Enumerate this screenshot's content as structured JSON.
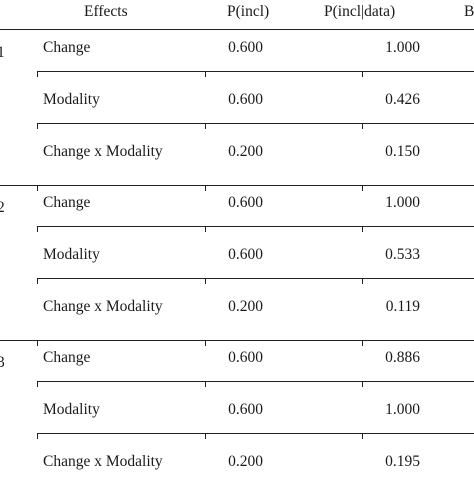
{
  "header": {
    "effects": "Effects",
    "p_incl": "P(incl)",
    "p_incl_data": "P(incl|data)",
    "bf_partial": "B"
  },
  "models": [
    {
      "label": "1",
      "rows": [
        {
          "effect": "Change",
          "p_incl": "0.600",
          "p_incl_data": "1.000"
        },
        {
          "effect": "Modality",
          "p_incl": "0.600",
          "p_incl_data": "0.426"
        },
        {
          "effect": "Change x Modality",
          "p_incl": "0.200",
          "p_incl_data": "0.150"
        }
      ]
    },
    {
      "label": "2",
      "rows": [
        {
          "effect": "Change",
          "p_incl": "0.600",
          "p_incl_data": "1.000"
        },
        {
          "effect": "Modality",
          "p_incl": "0.600",
          "p_incl_data": "0.533"
        },
        {
          "effect": "Change x Modality",
          "p_incl": "0.200",
          "p_incl_data": "0.119"
        }
      ]
    },
    {
      "label": "3",
      "rows": [
        {
          "effect": "Change",
          "p_incl": "0.600",
          "p_incl_data": "0.886"
        },
        {
          "effect": "Modality",
          "p_incl": "0.600",
          "p_incl_data": "1.000"
        },
        {
          "effect": "Change x Modality",
          "p_incl": "0.200",
          "p_incl_data": "0.195"
        }
      ]
    }
  ]
}
